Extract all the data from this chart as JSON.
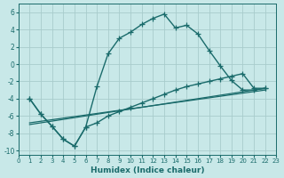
{
  "xlabel": "Humidex (Indice chaleur)",
  "background_color": "#c8e8e8",
  "grid_color": "#a8cccc",
  "line_color": "#1a6b6b",
  "xlim": [
    0,
    23
  ],
  "ylim": [
    -10.5,
    7.0
  ],
  "xtick_vals": [
    0,
    1,
    2,
    3,
    4,
    5,
    6,
    7,
    8,
    9,
    10,
    11,
    12,
    13,
    14,
    15,
    16,
    17,
    18,
    19,
    20,
    21,
    22,
    23
  ],
  "ytick_vals": [
    -10,
    -8,
    -6,
    -4,
    -2,
    0,
    2,
    4,
    6
  ],
  "curve1_x": [
    1,
    2,
    3,
    4,
    5,
    6,
    7,
    8,
    9,
    10,
    11,
    12,
    13,
    14,
    15,
    16,
    17,
    18,
    19,
    20,
    21,
    22
  ],
  "curve1_y": [
    -4.0,
    -5.8,
    -7.2,
    -8.7,
    -9.5,
    -7.3,
    -2.6,
    1.2,
    3.0,
    3.7,
    4.6,
    5.3,
    5.8,
    4.2,
    4.5,
    3.5,
    1.6,
    -0.2,
    -1.9,
    -3.0,
    -3.0,
    -2.8
  ],
  "curve2_x": [
    1,
    2,
    3,
    4,
    5,
    6,
    7,
    8,
    9,
    10,
    11,
    12,
    13,
    14,
    15,
    16,
    17,
    18,
    19,
    20,
    21,
    22
  ],
  "curve2_y": [
    -4.0,
    -5.8,
    -7.2,
    -8.7,
    -9.5,
    -7.3,
    -6.8,
    -6.0,
    -5.5,
    -5.0,
    -4.5,
    -4.0,
    -3.5,
    -3.0,
    -2.6,
    -2.3,
    -2.0,
    -1.7,
    -1.4,
    -1.1,
    -2.8,
    -2.8
  ],
  "line3_x": [
    1,
    22
  ],
  "line3_y": [
    -6.8,
    -3.0
  ],
  "line4_x": [
    1,
    22
  ],
  "line4_y": [
    -7.0,
    -2.8
  ]
}
